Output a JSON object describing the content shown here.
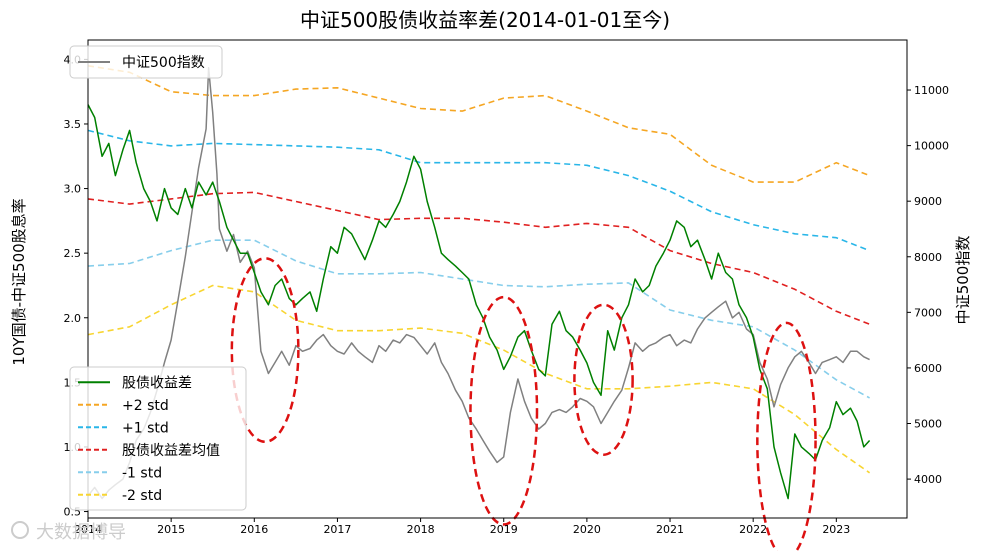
{
  "chart_data": {
    "type": "line",
    "title": "中证500股债收益率差(2014-01-01至今)",
    "ylabel_left": "10Y国债-中证500股息率",
    "ylabel_right": "中证500指数",
    "x_ticks": [
      "2014",
      "2015",
      "2016",
      "2017",
      "2018",
      "2019",
      "2020",
      "2021",
      "2022",
      "2023"
    ],
    "ylim_left": [
      0.45,
      4.15
    ],
    "y_ticks_left": [
      "0.5",
      "1.0",
      "1.5",
      "2.0",
      "2.5",
      "3.0",
      "3.5",
      "4.0"
    ],
    "ylim_right": [
      3300,
      11900
    ],
    "y_ticks_right": [
      "4000",
      "5000",
      "6000",
      "7000",
      "8000",
      "9000",
      "10000",
      "11000"
    ],
    "xlim": [
      2014.0,
      2023.85
    ],
    "grid": false,
    "legend_top": {
      "placement": "top-left",
      "entries": [
        "中证500指数"
      ]
    },
    "legend_bottom": {
      "placement": "bottom-left",
      "entries": [
        "股债收益差",
        "+2 std",
        "+1 std",
        "股债收益差均值",
        "-1 std",
        "-2 std"
      ]
    },
    "colors": {
      "spread": "#008000",
      "index": "#808080",
      "plus2": "#f5a623",
      "plus1": "#29b6e8",
      "mean": "#e02020",
      "minus1": "#87ceeb",
      "minus2": "#f8d531",
      "ellipse": "#dd1111"
    },
    "series": [
      {
        "name": "股债收益差",
        "axis": "left",
        "x": [
          2014.0,
          2014.08,
          2014.17,
          2014.25,
          2014.33,
          2014.42,
          2014.5,
          2014.58,
          2014.67,
          2014.75,
          2014.83,
          2014.92,
          2015.0,
          2015.08,
          2015.17,
          2015.25,
          2015.33,
          2015.42,
          2015.5,
          2015.58,
          2015.67,
          2015.75,
          2015.83,
          2015.92,
          2016.0,
          2016.08,
          2016.17,
          2016.25,
          2016.33,
          2016.42,
          2016.5,
          2016.58,
          2016.67,
          2016.75,
          2016.83,
          2016.92,
          2017.0,
          2017.08,
          2017.17,
          2017.25,
          2017.33,
          2017.42,
          2017.5,
          2017.58,
          2017.67,
          2017.75,
          2017.83,
          2017.92,
          2018.0,
          2018.08,
          2018.17,
          2018.25,
          2018.33,
          2018.42,
          2018.5,
          2018.58,
          2018.67,
          2018.75,
          2018.83,
          2018.92,
          2019.0,
          2019.08,
          2019.17,
          2019.25,
          2019.33,
          2019.42,
          2019.5,
          2019.58,
          2019.67,
          2019.75,
          2019.83,
          2019.92,
          2020.0,
          2020.08,
          2020.17,
          2020.25,
          2020.33,
          2020.42,
          2020.5,
          2020.58,
          2020.67,
          2020.75,
          2020.83,
          2020.92,
          2021.0,
          2021.08,
          2021.17,
          2021.25,
          2021.33,
          2021.42,
          2021.5,
          2021.58,
          2021.67,
          2021.75,
          2021.83,
          2021.92,
          2022.0,
          2022.08,
          2022.17,
          2022.25,
          2022.33,
          2022.42,
          2022.5,
          2022.58,
          2022.67,
          2022.75,
          2022.83,
          2022.92,
          2023.0,
          2023.08,
          2023.17,
          2023.25,
          2023.33,
          2023.4
        ],
        "values": [
          3.65,
          3.55,
          3.25,
          3.35,
          3.1,
          3.3,
          3.45,
          3.2,
          3.0,
          2.9,
          2.75,
          3.0,
          2.85,
          2.8,
          3.0,
          2.85,
          3.05,
          2.95,
          3.05,
          2.9,
          2.7,
          2.6,
          2.5,
          2.5,
          2.35,
          2.2,
          2.1,
          2.25,
          2.3,
          2.15,
          2.1,
          2.15,
          2.2,
          2.05,
          2.3,
          2.55,
          2.5,
          2.7,
          2.65,
          2.55,
          2.45,
          2.6,
          2.75,
          2.7,
          2.8,
          2.9,
          3.05,
          3.25,
          3.15,
          2.9,
          2.7,
          2.5,
          2.45,
          2.4,
          2.35,
          2.3,
          2.1,
          2.0,
          1.85,
          1.75,
          1.6,
          1.7,
          1.85,
          1.9,
          1.75,
          1.6,
          1.55,
          1.95,
          2.05,
          1.9,
          1.85,
          1.75,
          1.65,
          1.5,
          1.4,
          1.9,
          1.75,
          2.0,
          2.1,
          2.3,
          2.2,
          2.25,
          2.4,
          2.5,
          2.6,
          2.75,
          2.7,
          2.55,
          2.6,
          2.45,
          2.3,
          2.5,
          2.35,
          2.3,
          2.1,
          2.0,
          1.85,
          1.6,
          1.45,
          1.0,
          0.8,
          0.6,
          1.1,
          1.0,
          0.95,
          0.9,
          1.05,
          1.15,
          1.35,
          1.25,
          1.3,
          1.2,
          1.0,
          1.05
        ]
      },
      {
        "name": "中证500指数",
        "axis": "right",
        "x": [
          2014.0,
          2014.08,
          2014.17,
          2014.25,
          2014.33,
          2014.42,
          2014.5,
          2014.58,
          2014.67,
          2014.75,
          2014.83,
          2014.92,
          2015.0,
          2015.08,
          2015.17,
          2015.25,
          2015.33,
          2015.42,
          2015.45,
          2015.5,
          2015.55,
          2015.58,
          2015.67,
          2015.75,
          2015.83,
          2015.92,
          2016.0,
          2016.08,
          2016.17,
          2016.25,
          2016.33,
          2016.42,
          2016.5,
          2016.58,
          2016.67,
          2016.75,
          2016.83,
          2016.92,
          2017.0,
          2017.08,
          2017.17,
          2017.25,
          2017.33,
          2017.42,
          2017.5,
          2017.58,
          2017.67,
          2017.75,
          2017.83,
          2017.92,
          2018.0,
          2018.08,
          2018.17,
          2018.25,
          2018.33,
          2018.42,
          2018.5,
          2018.58,
          2018.67,
          2018.75,
          2018.83,
          2018.92,
          2019.0,
          2019.08,
          2019.17,
          2019.25,
          2019.33,
          2019.42,
          2019.5,
          2019.58,
          2019.67,
          2019.75,
          2019.83,
          2019.92,
          2020.0,
          2020.08,
          2020.17,
          2020.25,
          2020.33,
          2020.42,
          2020.5,
          2020.58,
          2020.67,
          2020.75,
          2020.83,
          2020.92,
          2021.0,
          2021.08,
          2021.17,
          2021.25,
          2021.33,
          2021.42,
          2021.5,
          2021.58,
          2021.67,
          2021.75,
          2021.83,
          2021.92,
          2022.0,
          2022.08,
          2022.17,
          2022.25,
          2022.33,
          2022.42,
          2022.5,
          2022.58,
          2022.67,
          2022.75,
          2022.83,
          2022.92,
          2023.0,
          2023.08,
          2023.17,
          2023.25,
          2023.33,
          2023.4
        ],
        "values": [
          3700,
          3850,
          3650,
          3800,
          3900,
          4000,
          4300,
          4700,
          4900,
          5200,
          5600,
          6100,
          6500,
          7200,
          8000,
          8800,
          9600,
          10300,
          11400,
          10600,
          9500,
          8500,
          8100,
          8400,
          7900,
          8100,
          7800,
          6300,
          5900,
          6100,
          6300,
          6050,
          6400,
          6300,
          6350,
          6500,
          6600,
          6400,
          6300,
          6250,
          6450,
          6300,
          6200,
          6100,
          6400,
          6300,
          6500,
          6450,
          6600,
          6550,
          6400,
          6250,
          6450,
          6100,
          5900,
          5600,
          5400,
          5100,
          4900,
          4700,
          4500,
          4300,
          4400,
          5200,
          5800,
          5400,
          5100,
          4900,
          5000,
          5200,
          5250,
          5200,
          5300,
          5450,
          5400,
          5300,
          5000,
          5200,
          5400,
          5600,
          6000,
          6450,
          6300,
          6400,
          6450,
          6550,
          6600,
          6400,
          6500,
          6450,
          6700,
          6900,
          7000,
          7100,
          7200,
          6900,
          7000,
          6700,
          6600,
          6100,
          5800,
          5300,
          5700,
          6000,
          6200,
          6300,
          6100,
          5900,
          6100,
          6150,
          6200,
          6100,
          6300,
          6300,
          6200,
          6150
        ]
      },
      {
        "name": "+2 std",
        "axis": "left",
        "x": [
          2014.0,
          2014.5,
          2015.0,
          2015.5,
          2016.0,
          2016.5,
          2017.0,
          2017.5,
          2018.0,
          2018.5,
          2019.0,
          2019.5,
          2020.0,
          2020.5,
          2021.0,
          2021.5,
          2022.0,
          2022.5,
          2023.0,
          2023.4
        ],
        "values": [
          3.95,
          3.9,
          3.75,
          3.72,
          3.72,
          3.77,
          3.78,
          3.7,
          3.62,
          3.6,
          3.7,
          3.72,
          3.6,
          3.47,
          3.42,
          3.18,
          3.05,
          3.05,
          3.2,
          3.1
        ]
      },
      {
        "name": "+1 std",
        "axis": "left",
        "x": [
          2014.0,
          2014.5,
          2015.0,
          2015.5,
          2016.0,
          2016.5,
          2017.0,
          2017.5,
          2018.0,
          2018.5,
          2019.0,
          2019.5,
          2020.0,
          2020.5,
          2021.0,
          2021.5,
          2022.0,
          2022.5,
          2023.0,
          2023.4
        ],
        "values": [
          3.45,
          3.37,
          3.33,
          3.35,
          3.34,
          3.33,
          3.32,
          3.3,
          3.2,
          3.2,
          3.2,
          3.2,
          3.18,
          3.1,
          2.98,
          2.82,
          2.72,
          2.65,
          2.62,
          2.52
        ]
      },
      {
        "name": "股债收益差均值",
        "axis": "left",
        "x": [
          2014.0,
          2014.5,
          2015.0,
          2015.5,
          2016.0,
          2016.5,
          2017.0,
          2017.5,
          2018.0,
          2018.5,
          2019.0,
          2019.5,
          2020.0,
          2020.5,
          2021.0,
          2021.5,
          2022.0,
          2022.5,
          2023.0,
          2023.4
        ],
        "values": [
          2.92,
          2.88,
          2.92,
          2.96,
          2.97,
          2.9,
          2.83,
          2.76,
          2.77,
          2.77,
          2.74,
          2.7,
          2.73,
          2.7,
          2.52,
          2.42,
          2.35,
          2.22,
          2.05,
          1.95
        ]
      },
      {
        "name": "-1 std",
        "axis": "left",
        "x": [
          2014.0,
          2014.5,
          2015.0,
          2015.5,
          2016.0,
          2016.5,
          2017.0,
          2017.5,
          2018.0,
          2018.5,
          2019.0,
          2019.5,
          2020.0,
          2020.5,
          2021.0,
          2021.5,
          2022.0,
          2022.5,
          2023.0,
          2023.4
        ],
        "values": [
          2.4,
          2.42,
          2.52,
          2.6,
          2.6,
          2.44,
          2.34,
          2.34,
          2.35,
          2.3,
          2.25,
          2.24,
          2.26,
          2.27,
          2.06,
          1.98,
          1.93,
          1.75,
          1.52,
          1.38
        ]
      },
      {
        "name": "-2 std",
        "axis": "left",
        "x": [
          2014.0,
          2014.5,
          2015.0,
          2015.5,
          2016.0,
          2016.5,
          2017.0,
          2017.5,
          2018.0,
          2018.5,
          2019.0,
          2019.5,
          2020.0,
          2020.5,
          2021.0,
          2021.5,
          2022.0,
          2022.5,
          2023.0,
          2023.4
        ],
        "values": [
          1.87,
          1.93,
          2.1,
          2.25,
          2.2,
          1.98,
          1.9,
          1.9,
          1.92,
          1.88,
          1.75,
          1.57,
          1.45,
          1.45,
          1.47,
          1.5,
          1.45,
          1.25,
          0.98,
          0.8
        ]
      }
    ],
    "annotations": [
      {
        "type": "ellipse",
        "cx": 2016.13,
        "cy": 1.75,
        "rx": 0.4,
        "ry": 0.71
      },
      {
        "type": "ellipse",
        "cx": 2019.0,
        "cy": 1.28,
        "rx": 0.4,
        "ry": 0.88
      },
      {
        "type": "ellipse",
        "cx": 2020.2,
        "cy": 1.52,
        "rx": 0.35,
        "ry": 0.58
      },
      {
        "type": "ellipse",
        "cx": 2022.4,
        "cy": 1.05,
        "rx": 0.35,
        "ry": 0.91
      }
    ]
  },
  "watermark": "大数据博导"
}
